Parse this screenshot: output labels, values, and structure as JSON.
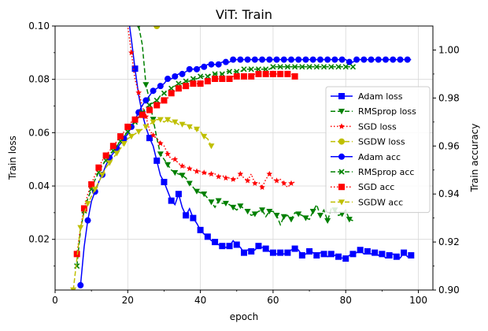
{
  "chart_data": {
    "type": "line",
    "title": "ViT: Train",
    "xlabel": "epoch",
    "ylabel_left": "Train loss",
    "ylabel_right": "Train accuracy",
    "xlim": [
      0,
      104
    ],
    "ylim_left": [
      0.001,
      0.1
    ],
    "ylim_right": [
      0.9,
      1.01
    ],
    "x_ticks": [
      "0",
      "20",
      "40",
      "60",
      "80",
      "100"
    ],
    "x_tick_values": [
      0,
      20,
      40,
      60,
      80,
      100
    ],
    "y_ticks_left": [
      "0.02",
      "0.04",
      "0.06",
      "0.08",
      "0.10"
    ],
    "y_tick_values_left": [
      0.02,
      0.04,
      0.06,
      0.08,
      0.1
    ],
    "y_ticks_right": [
      "0.90",
      "0.92",
      "0.94",
      "0.96",
      "0.98",
      "1.00"
    ],
    "y_tick_values_right": [
      0.9,
      0.92,
      0.94,
      0.96,
      0.98,
      1.0
    ],
    "grid": true,
    "legend_position": "center-right",
    "series": [
      {
        "name": "Adam loss",
        "axis": "left",
        "color": "#0000ff",
        "linestyle": "solid",
        "marker": "square",
        "x": [
          20,
          21,
          22,
          23,
          24,
          25,
          26,
          27,
          28,
          29,
          30,
          31,
          32,
          33,
          34,
          35,
          36,
          37,
          38,
          39,
          40,
          41,
          42,
          43,
          44,
          45,
          46,
          47,
          48,
          49,
          50,
          51,
          52,
          53,
          54,
          55,
          56,
          57,
          58,
          59,
          60,
          61,
          62,
          63,
          64,
          65,
          66,
          67,
          68,
          69,
          70,
          71,
          72,
          73,
          74,
          75,
          76,
          77,
          78,
          79,
          80,
          81,
          82,
          83,
          84,
          85,
          86,
          87,
          88,
          89,
          90,
          91,
          92,
          93,
          94,
          95,
          96,
          97,
          98
        ],
        "y": [
          0.105,
          0.095,
          0.084,
          0.074,
          0.067,
          0.062,
          0.058,
          0.055,
          0.0495,
          0.044,
          0.0415,
          0.038,
          0.0345,
          0.033,
          0.037,
          0.032,
          0.029,
          0.0315,
          0.028,
          0.026,
          0.0235,
          0.022,
          0.021,
          0.0195,
          0.019,
          0.018,
          0.0175,
          0.017,
          0.0175,
          0.0195,
          0.018,
          0.017,
          0.015,
          0.016,
          0.0155,
          0.016,
          0.0175,
          0.017,
          0.0165,
          0.0155,
          0.015,
          0.0145,
          0.015,
          0.0145,
          0.015,
          0.016,
          0.0165,
          0.016,
          0.014,
          0.0145,
          0.0155,
          0.015,
          0.014,
          0.015,
          0.0145,
          0.0135,
          0.0145,
          0.014,
          0.0135,
          0.013,
          0.0128,
          0.014,
          0.0145,
          0.015,
          0.016,
          0.0145,
          0.0155,
          0.0145,
          0.015,
          0.014,
          0.0145,
          0.013,
          0.014,
          0.0145,
          0.0135,
          0.013,
          0.015,
          0.0135,
          0.014
        ],
        "markers_every": 2
      },
      {
        "name": "RMSprop loss",
        "axis": "left",
        "color": "#008000",
        "linestyle": "dashed",
        "marker": "triangle-down",
        "x": [
          23,
          24,
          25,
          26,
          27,
          28,
          29,
          30,
          31,
          32,
          33,
          34,
          35,
          36,
          37,
          38,
          39,
          40,
          41,
          42,
          43,
          44,
          45,
          46,
          47,
          48,
          49,
          50,
          51,
          52,
          53,
          54,
          55,
          56,
          57,
          58,
          59,
          60,
          61,
          62,
          63,
          64,
          65,
          66,
          67,
          68,
          69,
          70,
          71,
          72,
          73,
          74,
          75,
          76,
          77,
          78,
          79,
          80,
          81,
          82
        ],
        "y": [
          0.1,
          0.093,
          0.078,
          0.072,
          0.065,
          0.058,
          0.052,
          0.05,
          0.048,
          0.046,
          0.045,
          0.0445,
          0.044,
          0.043,
          0.041,
          0.0395,
          0.038,
          0.0375,
          0.037,
          0.0355,
          0.034,
          0.032,
          0.0345,
          0.0335,
          0.0335,
          0.033,
          0.032,
          0.031,
          0.0325,
          0.0315,
          0.0305,
          0.029,
          0.0295,
          0.0305,
          0.031,
          0.0285,
          0.0305,
          0.0305,
          0.029,
          0.0255,
          0.0285,
          0.029,
          0.0275,
          0.03,
          0.0295,
          0.029,
          0.028,
          0.0275,
          0.0305,
          0.033,
          0.029,
          0.031,
          0.027,
          0.0315,
          0.031,
          0.029,
          0.0295,
          0.031,
          0.0275,
          0.027
        ],
        "markers_every": 2
      },
      {
        "name": "SGD loss",
        "axis": "left",
        "color": "#ff0000",
        "linestyle": "dotted",
        "marker": "star",
        "x": [
          19,
          20,
          21,
          22,
          23,
          24,
          25,
          26,
          27,
          28,
          29,
          30,
          31,
          32,
          33,
          34,
          35,
          36,
          37,
          38,
          39,
          40,
          41,
          42,
          43,
          44,
          45,
          46,
          47,
          48,
          49,
          50,
          51,
          52,
          53,
          54,
          55,
          56,
          57,
          58,
          59,
          60,
          61,
          62,
          63,
          64,
          65,
          66
        ],
        "y": [
          0.105,
          0.1,
          0.09,
          0.08,
          0.075,
          0.07,
          0.066,
          0.061,
          0.059,
          0.058,
          0.056,
          0.055,
          0.052,
          0.05,
          0.05,
          0.0485,
          0.0475,
          0.047,
          0.0465,
          0.046,
          0.0455,
          0.0455,
          0.045,
          0.0445,
          0.0445,
          0.0445,
          0.0435,
          0.044,
          0.043,
          0.043,
          0.0425,
          0.0425,
          0.0445,
          0.043,
          0.042,
          0.0445,
          0.041,
          0.0415,
          0.0395,
          0.0425,
          0.0445,
          0.0425,
          0.042,
          0.0425,
          0.041,
          0.0395,
          0.041,
          0.0415
        ],
        "markers_every": 2
      },
      {
        "name": "SGDW loss",
        "axis": "left",
        "color": "#bfbf00",
        "linestyle": "dashed",
        "marker": "circle",
        "x": [
          27,
          28,
          29
        ],
        "y": [
          0.103,
          0.1,
          0.102
        ],
        "markers_every": 1
      },
      {
        "name": "Adam acc",
        "axis": "right",
        "color": "#0000ff",
        "linestyle": "solid",
        "marker": "circle",
        "x": [
          7,
          8,
          9,
          10,
          11,
          12,
          13,
          14,
          15,
          16,
          17,
          18,
          19,
          20,
          21,
          22,
          23,
          24,
          25,
          26,
          27,
          28,
          29,
          30,
          31,
          32,
          33,
          34,
          35,
          36,
          37,
          38,
          39,
          40,
          41,
          42,
          43,
          44,
          45,
          46,
          47,
          48,
          49,
          50,
          51,
          52,
          53,
          54,
          55,
          56,
          57,
          58,
          59,
          60,
          61,
          62,
          63,
          64,
          65,
          66,
          67,
          68,
          69,
          70,
          71,
          72,
          73,
          74,
          75,
          76,
          77,
          78,
          79,
          80,
          81,
          82,
          83,
          84,
          85,
          86,
          87,
          88,
          89,
          90,
          91,
          92,
          93,
          94,
          95,
          96,
          97,
          98
        ],
        "y": [
          0.902,
          0.918,
          0.929,
          0.937,
          0.941,
          0.945,
          0.948,
          0.952,
          0.955,
          0.957,
          0.959,
          0.961,
          0.963,
          0.965,
          0.968,
          0.971,
          0.974,
          0.977,
          0.979,
          0.981,
          0.983,
          0.984,
          0.985,
          0.986,
          0.988,
          0.988,
          0.989,
          0.99,
          0.99,
          0.991,
          0.992,
          0.992,
          0.992,
          0.993,
          0.993,
          0.994,
          0.994,
          0.994,
          0.994,
          0.995,
          0.995,
          0.995,
          0.996,
          0.996,
          0.996,
          0.996,
          0.996,
          0.996,
          0.996,
          0.996,
          0.996,
          0.996,
          0.996,
          0.996,
          0.996,
          0.996,
          0.996,
          0.996,
          0.996,
          0.996,
          0.996,
          0.996,
          0.996,
          0.996,
          0.996,
          0.996,
          0.996,
          0.996,
          0.996,
          0.996,
          0.996,
          0.996,
          0.996,
          0.996,
          0.995,
          0.995,
          0.996,
          0.996,
          0.996,
          0.996,
          0.996,
          0.996,
          0.996,
          0.996,
          0.996,
          0.996,
          0.996,
          0.996,
          0.996,
          0.996,
          0.996,
          0.996
        ],
        "markers_every": 2
      },
      {
        "name": "RMSprop acc",
        "axis": "right",
        "color": "#008000",
        "linestyle": "dashed",
        "marker": "x",
        "x": [
          6,
          7,
          8,
          9,
          10,
          11,
          12,
          13,
          14,
          15,
          16,
          17,
          18,
          19,
          20,
          21,
          22,
          23,
          24,
          25,
          26,
          27,
          28,
          29,
          30,
          31,
          32,
          33,
          34,
          35,
          36,
          37,
          38,
          39,
          40,
          41,
          42,
          43,
          44,
          45,
          46,
          47,
          48,
          49,
          50,
          51,
          52,
          53,
          54,
          55,
          56,
          57,
          58,
          59,
          60,
          61,
          62,
          63,
          64,
          65,
          66,
          67,
          68,
          69,
          70,
          71,
          72,
          73,
          74,
          75,
          76,
          77,
          78,
          79,
          80,
          81,
          82
        ],
        "y": [
          0.91,
          0.925,
          0.933,
          0.938,
          0.942,
          0.946,
          0.949,
          0.952,
          0.954,
          0.956,
          0.958,
          0.96,
          0.962,
          0.964,
          0.966,
          0.968,
          0.97,
          0.972,
          0.974,
          0.976,
          0.977,
          0.978,
          0.979,
          0.981,
          0.982,
          0.983,
          0.984,
          0.985,
          0.986,
          0.986,
          0.987,
          0.987,
          0.988,
          0.988,
          0.989,
          0.989,
          0.989,
          0.99,
          0.99,
          0.99,
          0.99,
          0.991,
          0.991,
          0.991,
          0.991,
          0.991,
          0.992,
          0.992,
          0.992,
          0.992,
          0.992,
          0.992,
          0.992,
          0.992,
          0.993,
          0.993,
          0.993,
          0.993,
          0.993,
          0.993,
          0.993,
          0.993,
          0.993,
          0.993,
          0.993,
          0.993,
          0.993,
          0.993,
          0.993,
          0.993,
          0.993,
          0.993,
          0.993,
          0.993,
          0.993,
          0.993,
          0.993
        ],
        "markers_every": 2
      },
      {
        "name": "SGD acc",
        "axis": "right",
        "color": "#ff0000",
        "linestyle": "dotted",
        "marker": "square",
        "x": [
          6,
          7,
          8,
          9,
          10,
          11,
          12,
          13,
          14,
          15,
          16,
          17,
          18,
          19,
          20,
          21,
          22,
          23,
          24,
          25,
          26,
          27,
          28,
          29,
          30,
          31,
          32,
          33,
          34,
          35,
          36,
          37,
          38,
          39,
          40,
          41,
          42,
          43,
          44,
          45,
          46,
          47,
          48,
          49,
          50,
          51,
          52,
          53,
          54,
          55,
          56,
          57,
          58,
          59,
          60,
          61,
          62,
          63,
          64,
          65,
          66
        ],
        "y": [
          0.915,
          0.926,
          0.934,
          0.94,
          0.944,
          0.948,
          0.951,
          0.954,
          0.956,
          0.958,
          0.96,
          0.962,
          0.964,
          0.966,
          0.968,
          0.97,
          0.971,
          0.972,
          0.973,
          0.974,
          0.975,
          0.976,
          0.977,
          0.978,
          0.979,
          0.98,
          0.982,
          0.983,
          0.984,
          0.984,
          0.985,
          0.985,
          0.986,
          0.986,
          0.986,
          0.987,
          0.987,
          0.987,
          0.988,
          0.988,
          0.988,
          0.988,
          0.988,
          0.989,
          0.989,
          0.989,
          0.989,
          0.989,
          0.989,
          0.99,
          0.99,
          0.99,
          0.99,
          0.99,
          0.99,
          0.99,
          0.99,
          0.99,
          0.99,
          0.99,
          0.989
        ],
        "markers_every": 2
      },
      {
        "name": "SGDW acc",
        "axis": "right",
        "color": "#bfbf00",
        "linestyle": "dashed",
        "marker": "triangle-down",
        "x": [
          5,
          6,
          7,
          8,
          9,
          10,
          11,
          12,
          13,
          14,
          15,
          16,
          17,
          18,
          19,
          20,
          21,
          22,
          23,
          24,
          25,
          26,
          27,
          28,
          29,
          30,
          31,
          32,
          33,
          34,
          35,
          36,
          37,
          38,
          39,
          40,
          41,
          42,
          43
        ],
        "y": [
          0.9,
          0.913,
          0.926,
          0.932,
          0.936,
          0.939,
          0.942,
          0.945,
          0.948,
          0.951,
          0.953,
          0.955,
          0.957,
          0.959,
          0.961,
          0.963,
          0.964,
          0.965,
          0.966,
          0.967,
          0.968,
          0.969,
          0.97,
          0.971,
          0.971,
          0.97,
          0.971,
          0.97,
          0.97,
          0.969,
          0.969,
          0.969,
          0.968,
          0.967,
          0.967,
          0.966,
          0.964,
          0.963,
          0.96
        ],
        "markers_every": 2
      }
    ]
  }
}
